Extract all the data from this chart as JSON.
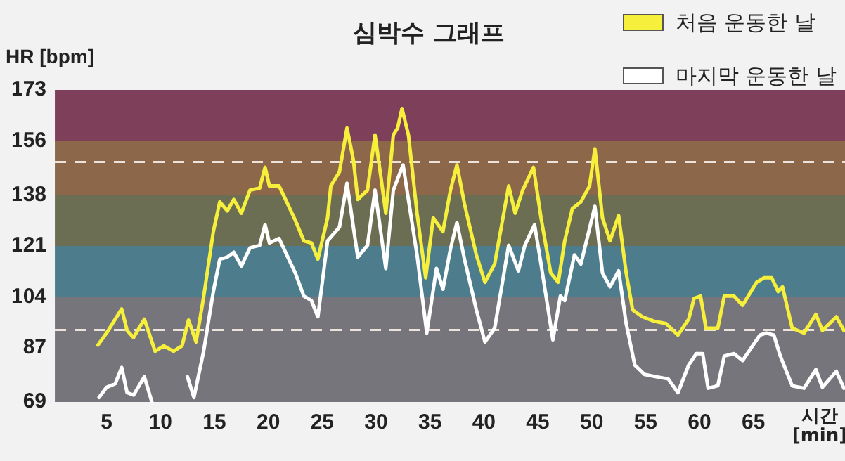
{
  "chart_data": {
    "type": "line",
    "title": "심박수 그래프",
    "ylabel": "HR [bpm]",
    "xlabel": "시간 [min]",
    "xlim": [
      0.2,
      73.5
    ],
    "xticks": [
      5,
      10,
      15,
      20,
      25,
      30,
      35,
      40,
      45,
      50,
      55,
      60,
      65
    ],
    "ylim": [
      69,
      173
    ],
    "yticks": [
      69,
      87,
      104,
      121,
      138,
      156,
      173
    ],
    "grid": false,
    "legend": "top right",
    "marker": "none",
    "line_style": "solid",
    "bands": [
      {
        "axis": "y",
        "from": 69,
        "to": 104,
        "color": "#77757c"
      },
      {
        "axis": "y",
        "from": 104,
        "to": 121,
        "color": "#4d7d8c"
      },
      {
        "axis": "y",
        "from": 121,
        "to": 138,
        "color": "#6b6e52"
      },
      {
        "axis": "y",
        "from": 138,
        "to": 156,
        "color": "#8c6749"
      },
      {
        "axis": "y",
        "from": 156,
        "to": 173,
        "color": "#7e3f5b"
      }
    ],
    "ref_lines": [
      {
        "axis": "y",
        "value": 149,
        "color": "#ece4dc",
        "line_style": "dashed"
      },
      {
        "axis": "y",
        "value": 93,
        "color": "#ece4dc",
        "line_style": "dashed"
      }
    ],
    "series": [
      {
        "name": "처음 운동한 날",
        "color": "#f6ef3c",
        "x": [
          4.2,
          5,
          5.8,
          6.4,
          6.9,
          7.5,
          8.5,
          9.5,
          10.3,
          11.2,
          12,
          12.6,
          13.3,
          14,
          14.9,
          15.5,
          16.2,
          16.8,
          17.5,
          18.3,
          19.2,
          19.7,
          20.1,
          21,
          21.6,
          22.5,
          23.3,
          24,
          24.6,
          25.5,
          25.8,
          26.6,
          27.3,
          27.9,
          28.3,
          29.2,
          29.9,
          30.5,
          30.9,
          31.6,
          32,
          32.4,
          33,
          33.8,
          34.6,
          35.3,
          36.2,
          36.9,
          37.5,
          38.2,
          39.3,
          40.1,
          41,
          42.3,
          42.9,
          43.6,
          44.6,
          45.3,
          46.2,
          46.9,
          47.5,
          48.2,
          49,
          49.8,
          50.3,
          51,
          51.7,
          52.5,
          53.2,
          53.8,
          54.7,
          55.8,
          56.9,
          58,
          59,
          59.5,
          60.1,
          60.6,
          61.7,
          62.3,
          63.2,
          64,
          65.3,
          66,
          66.7,
          67.3,
          67.7,
          68.6,
          69.7,
          70.8,
          71.4,
          72.7,
          73.4
        ],
        "values": [
          88,
          92,
          96.6,
          100,
          92.8,
          90.5,
          96.6,
          85.9,
          87.7,
          85.9,
          87.7,
          96.3,
          89,
          104,
          125.8,
          135.7,
          132.7,
          136.5,
          131.9,
          139.6,
          140.3,
          147.2,
          141,
          141,
          136.5,
          129.6,
          122.7,
          122,
          116.6,
          130.4,
          141,
          145.7,
          160.3,
          149.5,
          136.5,
          139.6,
          158,
          142.6,
          131.9,
          158,
          160.3,
          166.8,
          158,
          131.9,
          110.4,
          130.4,
          125.8,
          139.6,
          148,
          135,
          118,
          108.9,
          115,
          141,
          131.9,
          139.6,
          147.2,
          130.4,
          112,
          108.9,
          122.7,
          133.4,
          135.7,
          141,
          153.4,
          130.4,
          122.7,
          131.1,
          112,
          99.7,
          97.4,
          95.9,
          95.1,
          91.3,
          96.6,
          103.5,
          104.3,
          93.6,
          93.6,
          104.3,
          104.3,
          101.2,
          108.9,
          110.4,
          110.4,
          105.8,
          107.4,
          93.6,
          92,
          98.2,
          92.8,
          97.4,
          92.8
        ]
      },
      {
        "name": "마지막 운동한 날",
        "color": "#ffffff",
        "x": [
          4.3,
          5,
          5.8,
          6.4,
          6.9,
          7.5,
          8.5,
          9.2,
          10.5,
          12.5,
          13.1,
          14,
          14.9,
          15.5,
          16.2,
          16.8,
          17.5,
          18.3,
          19.2,
          19.7,
          20.1,
          21,
          21.6,
          22.5,
          23.3,
          24,
          24.6,
          25.5,
          26.6,
          27.3,
          28.3,
          29.2,
          29.9,
          30.9,
          31.6,
          32.5,
          33.8,
          34.7,
          35.6,
          36.2,
          36.9,
          37.5,
          38.2,
          39.3,
          40.1,
          41,
          42.3,
          43.2,
          43.8,
          44.7,
          45.3,
          46.4,
          47.1,
          47.5,
          48.4,
          49,
          50.3,
          51,
          51.7,
          52.5,
          53.2,
          54,
          54.9,
          56,
          57.1,
          58,
          59,
          59.7,
          60.3,
          60.8,
          61.7,
          62.3,
          63.2,
          64,
          65.6,
          66.2,
          66.9,
          67.5,
          68.6,
          69.7,
          70.8,
          71.4,
          72.7,
          73.4
        ],
        "values": [
          70.5,
          73.9,
          75.1,
          80.5,
          72.1,
          71.3,
          77.4,
          69,
          null,
          77.4,
          70.5,
          85.9,
          105.8,
          116.6,
          117.3,
          118.9,
          114.3,
          120.4,
          121.2,
          128.1,
          122,
          123.5,
          118.9,
          112,
          104.3,
          102.8,
          97.4,
          122.7,
          127.3,
          141.9,
          117.3,
          121.2,
          139.6,
          113.5,
          139.6,
          148,
          118,
          92,
          113.5,
          106.6,
          120,
          128.8,
          116.6,
          99.7,
          89,
          93.6,
          121.2,
          112.7,
          121.2,
          128.1,
          115,
          89.7,
          104.3,
          102.8,
          118,
          115,
          134.2,
          112,
          107.4,
          112.7,
          95.1,
          81.3,
          78.2,
          77.4,
          76.7,
          72.1,
          81.3,
          85.1,
          85.1,
          73.6,
          74.4,
          84.3,
          85.1,
          82.8,
          91.3,
          92,
          91.3,
          84.3,
          74.4,
          73.6,
          79.8,
          73.9,
          79.2,
          73.6
        ]
      }
    ]
  }
}
